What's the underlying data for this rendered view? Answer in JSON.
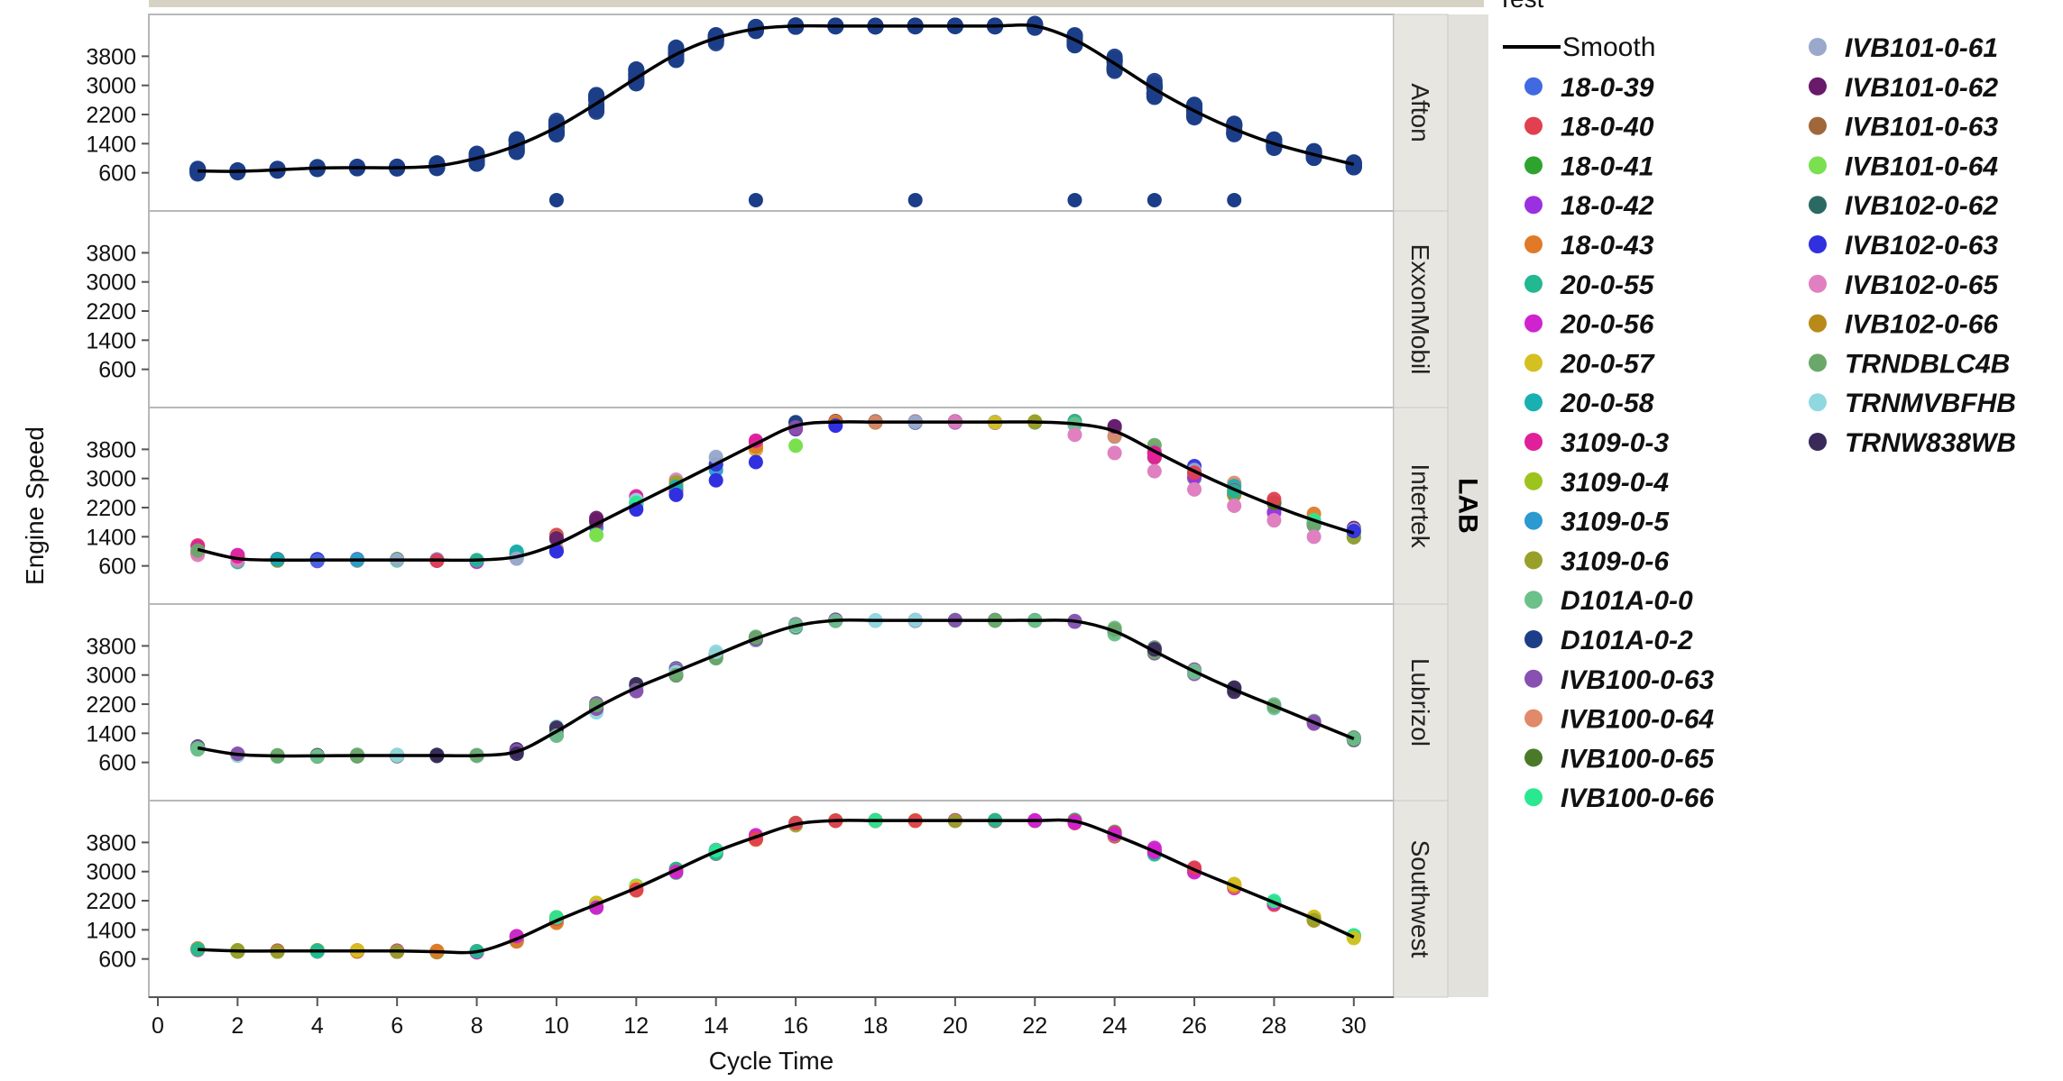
{
  "chart_data": {
    "type": "scatter",
    "xlabel": "Cycle Time",
    "ylabel": "Engine Speed",
    "group_label": "LAB",
    "legend_title": "Test",
    "smooth_label": "Smooth",
    "xlim": [
      0,
      31
    ],
    "x_ticks": [
      0,
      2,
      4,
      6,
      8,
      10,
      12,
      14,
      16,
      18,
      20,
      22,
      24,
      26,
      28,
      30
    ],
    "ylim": [
      -300,
      4800
    ],
    "y_ticks": [
      600,
      1400,
      2200,
      3000,
      3800
    ],
    "legend_placement": "right",
    "grid": false,
    "panels": [
      {
        "name": "Afton",
        "smooth": [
          [
            1,
            650
          ],
          [
            2,
            640
          ],
          [
            3,
            680
          ],
          [
            4,
            730
          ],
          [
            5,
            740
          ],
          [
            6,
            740
          ],
          [
            7,
            790
          ],
          [
            8,
            1000
          ],
          [
            9,
            1350
          ],
          [
            10,
            1850
          ],
          [
            11,
            2500
          ],
          [
            12,
            3200
          ],
          [
            13,
            3850
          ],
          [
            14,
            4300
          ],
          [
            15,
            4550
          ],
          [
            16,
            4630
          ],
          [
            17,
            4630
          ],
          [
            18,
            4630
          ],
          [
            19,
            4630
          ],
          [
            20,
            4630
          ],
          [
            21,
            4630
          ],
          [
            22,
            4630
          ],
          [
            23,
            4250
          ],
          [
            24,
            3600
          ],
          [
            25,
            2900
          ],
          [
            26,
            2300
          ],
          [
            27,
            1800
          ],
          [
            28,
            1400
          ],
          [
            29,
            1100
          ],
          [
            30,
            830
          ]
        ],
        "spread": [
          140,
          60,
          60,
          60,
          60,
          60,
          140,
          300,
          360,
          420,
          480,
          480,
          420,
          300,
          120,
          40,
          20,
          20,
          20,
          20,
          20,
          150,
          300,
          420,
          480,
          400,
          320,
          250,
          200,
          180
        ],
        "series_points": [
          {
            "series": "D101A-0-2",
            "x": [
              10,
              15,
              19,
              23,
              25,
              27
            ],
            "y": [
              -150,
              -150,
              -150,
              -150,
              -150,
              -150
            ]
          }
        ]
      },
      {
        "name": "ExxonMobil",
        "smooth": [],
        "spread": [],
        "series_points": []
      },
      {
        "name": "Intertek",
        "smooth": [
          [
            1,
            1050
          ],
          [
            2,
            800
          ],
          [
            3,
            760
          ],
          [
            4,
            760
          ],
          [
            5,
            760
          ],
          [
            6,
            760
          ],
          [
            7,
            760
          ],
          [
            8,
            760
          ],
          [
            9,
            850
          ],
          [
            10,
            1200
          ],
          [
            11,
            1750
          ],
          [
            12,
            2300
          ],
          [
            13,
            2850
          ],
          [
            14,
            3400
          ],
          [
            15,
            3950
          ],
          [
            16,
            4450
          ],
          [
            17,
            4550
          ],
          [
            18,
            4550
          ],
          [
            19,
            4550
          ],
          [
            20,
            4550
          ],
          [
            21,
            4550
          ],
          [
            22,
            4550
          ],
          [
            23,
            4500
          ],
          [
            24,
            4300
          ],
          [
            25,
            3750
          ],
          [
            26,
            3200
          ],
          [
            27,
            2700
          ],
          [
            28,
            2250
          ],
          [
            29,
            1850
          ],
          [
            30,
            1500
          ]
        ],
        "spread": [
          300,
          200,
          60,
          60,
          60,
          60,
          60,
          120,
          300,
          500,
          480,
          440,
          420,
          400,
          340,
          200,
          80,
          40,
          40,
          40,
          40,
          40,
          180,
          300,
          400,
          460,
          460,
          420,
          380,
          320
        ],
        "series_points": [
          {
            "series": "IVB102-0-63",
            "x": [
              10,
              12,
              13,
              14,
              15,
              17
            ],
            "y": [
              1000,
              2150,
              2550,
              2950,
              3450,
              4450
            ]
          },
          {
            "series": "IVB101-0-64",
            "x": [
              11,
              16
            ],
            "y": [
              1450,
              3900
            ]
          },
          {
            "series": "IVB102-0-65",
            "x": [
              23,
              24,
              25,
              26,
              27,
              28,
              29
            ],
            "y": [
              4200,
              3700,
              3200,
              2700,
              2250,
              1850,
              1400
            ]
          },
          {
            "series": "IVB101-0-61",
            "x": [
              9,
              19
            ],
            "y": [
              800,
              4550
            ]
          }
        ]
      },
      {
        "name": "Lubrizol",
        "smooth": [
          [
            1,
            1000
          ],
          [
            2,
            820
          ],
          [
            3,
            780
          ],
          [
            4,
            780
          ],
          [
            5,
            790
          ],
          [
            6,
            790
          ],
          [
            7,
            790
          ],
          [
            8,
            790
          ],
          [
            9,
            900
          ],
          [
            10,
            1450
          ],
          [
            11,
            2100
          ],
          [
            12,
            2650
          ],
          [
            13,
            3100
          ],
          [
            14,
            3550
          ],
          [
            15,
            4000
          ],
          [
            16,
            4350
          ],
          [
            17,
            4500
          ],
          [
            18,
            4500
          ],
          [
            19,
            4500
          ],
          [
            20,
            4500
          ],
          [
            21,
            4500
          ],
          [
            22,
            4500
          ],
          [
            23,
            4480
          ],
          [
            24,
            4200
          ],
          [
            25,
            3650
          ],
          [
            26,
            3100
          ],
          [
            27,
            2600
          ],
          [
            28,
            2150
          ],
          [
            29,
            1700
          ],
          [
            30,
            1250
          ]
        ],
        "spread": [
          80,
          60,
          40,
          40,
          40,
          40,
          40,
          40,
          140,
          300,
          300,
          260,
          220,
          200,
          160,
          100,
          40,
          20,
          20,
          20,
          20,
          20,
          40,
          200,
          220,
          160,
          140,
          120,
          100,
          80
        ],
        "series_points": []
      },
      {
        "name": "Southwest",
        "smooth": [
          [
            1,
            860
          ],
          [
            2,
            820
          ],
          [
            3,
            820
          ],
          [
            4,
            820
          ],
          [
            5,
            820
          ],
          [
            6,
            820
          ],
          [
            7,
            800
          ],
          [
            8,
            800
          ],
          [
            9,
            1150
          ],
          [
            10,
            1650
          ],
          [
            11,
            2100
          ],
          [
            12,
            2550
          ],
          [
            13,
            3050
          ],
          [
            14,
            3550
          ],
          [
            15,
            3950
          ],
          [
            16,
            4300
          ],
          [
            17,
            4400
          ],
          [
            18,
            4400
          ],
          [
            19,
            4400
          ],
          [
            20,
            4400
          ],
          [
            21,
            4400
          ],
          [
            22,
            4400
          ],
          [
            23,
            4380
          ],
          [
            24,
            4000
          ],
          [
            25,
            3550
          ],
          [
            26,
            3050
          ],
          [
            27,
            2600
          ],
          [
            28,
            2150
          ],
          [
            29,
            1700
          ],
          [
            30,
            1200
          ]
        ],
        "spread": [
          80,
          40,
          40,
          40,
          40,
          40,
          40,
          40,
          160,
          200,
          200,
          200,
          180,
          180,
          160,
          80,
          20,
          20,
          20,
          20,
          20,
          20,
          120,
          240,
          240,
          200,
          160,
          140,
          120,
          120
        ],
        "series_points": []
      }
    ],
    "legend": [
      {
        "name": "18-0-39",
        "color": "#4169e1"
      },
      {
        "name": "18-0-40",
        "color": "#e04050"
      },
      {
        "name": "18-0-41",
        "color": "#2ea42e"
      },
      {
        "name": "18-0-42",
        "color": "#9b30e0"
      },
      {
        "name": "18-0-43",
        "color": "#e07a28"
      },
      {
        "name": "20-0-55",
        "color": "#22b890"
      },
      {
        "name": "20-0-56",
        "color": "#d023d0"
      },
      {
        "name": "20-0-57",
        "color": "#d4c020"
      },
      {
        "name": "20-0-58",
        "color": "#18b0b0"
      },
      {
        "name": "3109-0-3",
        "color": "#e0209a"
      },
      {
        "name": "3109-0-4",
        "color": "#9cc41c"
      },
      {
        "name": "3109-0-5",
        "color": "#2a9ad0"
      },
      {
        "name": "3109-0-6",
        "color": "#98a02a"
      },
      {
        "name": "D101A-0-0",
        "color": "#6cc08a"
      },
      {
        "name": "D101A-0-2",
        "color": "#1c3e88"
      },
      {
        "name": "IVB100-0-63",
        "color": "#8850b0"
      },
      {
        "name": "IVB100-0-64",
        "color": "#e08a6a"
      },
      {
        "name": "IVB100-0-65",
        "color": "#4a7a28"
      },
      {
        "name": "IVB100-0-66",
        "color": "#2ae890"
      },
      {
        "name": "IVB101-0-61",
        "color": "#9aa8cc"
      },
      {
        "name": "IVB101-0-62",
        "color": "#6a1a6a"
      },
      {
        "name": "IVB101-0-63",
        "color": "#a0683a"
      },
      {
        "name": "IVB101-0-64",
        "color": "#7ae050"
      },
      {
        "name": "IVB102-0-62",
        "color": "#2a6a62"
      },
      {
        "name": "IVB102-0-63",
        "color": "#3030e0"
      },
      {
        "name": "IVB102-0-65",
        "color": "#e080c0"
      },
      {
        "name": "IVB102-0-66",
        "color": "#b88a18"
      },
      {
        "name": "TRNDBLC4B",
        "color": "#6aa86a"
      },
      {
        "name": "TRNMVBFHB",
        "color": "#90d8e0"
      },
      {
        "name": "TRNW838WB",
        "color": "#3a2a5a"
      }
    ]
  }
}
